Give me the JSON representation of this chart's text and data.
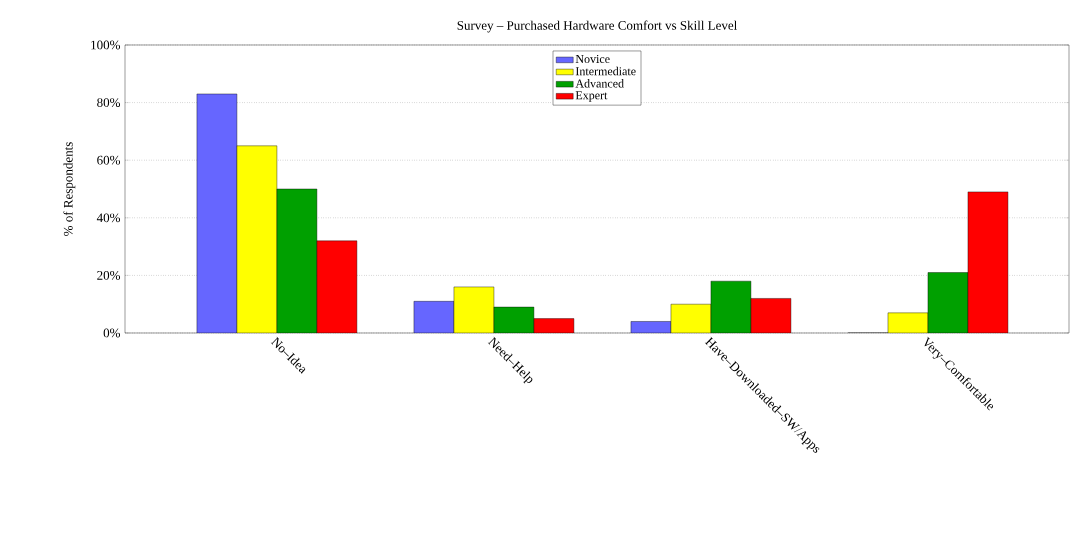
{
  "chart_data": {
    "type": "bar",
    "title": "Survey – Purchased Hardware Comfort vs Skill Level",
    "ylabel": "% of Respondents",
    "categories": [
      "No–Idea",
      "Need–Help",
      "Have–Downloaded–SW/Apps",
      "Very–Comfortable"
    ],
    "series": [
      {
        "name": "Novice",
        "color": "#6666ff",
        "values": [
          83,
          11,
          4,
          0
        ]
      },
      {
        "name": "Intermediate",
        "color": "#ffff00",
        "values": [
          65,
          16,
          10,
          7
        ]
      },
      {
        "name": "Advanced",
        "color": "#00a000",
        "values": [
          50,
          9,
          18,
          21
        ]
      },
      {
        "name": "Expert",
        "color": "#ff0000",
        "values": [
          32,
          5,
          12,
          49
        ]
      }
    ],
    "ylim": [
      0,
      100
    ],
    "yticks": [
      {
        "value": 0,
        "label": "0%"
      },
      {
        "value": 20,
        "label": "20%"
      },
      {
        "value": 40,
        "label": "40%"
      },
      {
        "value": 60,
        "label": "60%"
      },
      {
        "value": 80,
        "label": "80%"
      },
      {
        "value": 100,
        "label": "100%"
      }
    ],
    "grid": "y",
    "legend": "top"
  }
}
